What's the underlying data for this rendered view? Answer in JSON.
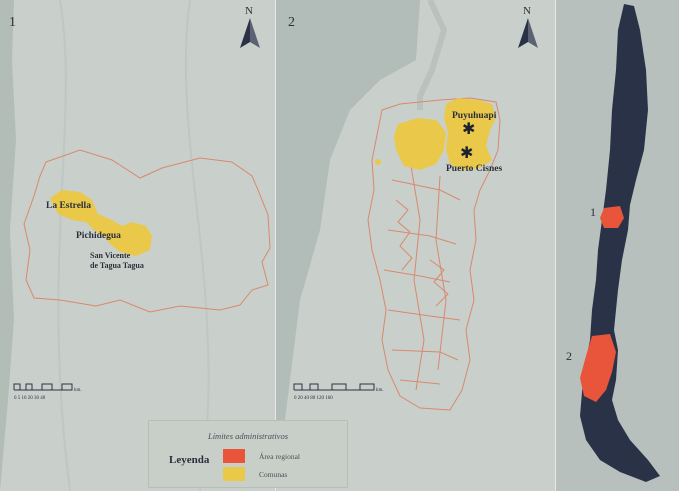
{
  "panels": [
    {
      "number": "1",
      "north": "N",
      "scale_ticks": "0  5 10   20    30    40",
      "scale_unit": "km."
    },
    {
      "number": "2",
      "north": "N",
      "scale_ticks": "0  20  40     80    120   160",
      "scale_unit": "km."
    }
  ],
  "region1_labels": {
    "la_estrella": "La Estrella",
    "pichidegua": "Pichidegua",
    "san_vicente_line1": "San Vicente",
    "san_vicente_line2": "de Tagua Tagua"
  },
  "region2_labels": {
    "puyuhuapi": "Puyuhuapi",
    "puerto_cisnes": "Puerto Cisnes"
  },
  "chile_labels": {
    "one": "1",
    "two": "2"
  },
  "legend": {
    "title": "Límites administrativos",
    "heading": "Leyenda",
    "items": [
      {
        "label": "Área regional",
        "color": "#e8553a"
      },
      {
        "label": "Comunas",
        "color": "#eac84a"
      }
    ]
  },
  "colors": {
    "land": "#c9d0cb",
    "sea": "#b2bcb8",
    "country": "#2a3247",
    "region": "#e8553a",
    "commune": "#eac84a",
    "boundary": "#d9886e"
  }
}
